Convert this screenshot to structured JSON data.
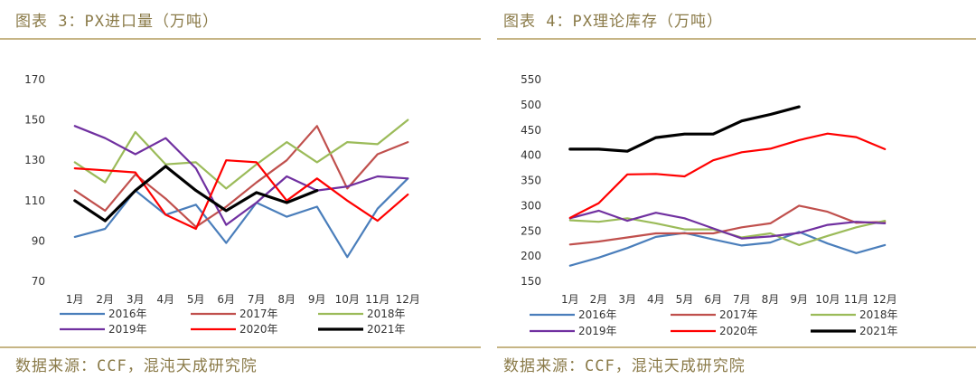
{
  "charts": [
    {
      "title": "图表 3：PX进口量（万吨）",
      "source": "数据来源：CCF，混沌天成研究院"
    },
    {
      "title": "图表 4：PX理论库存（万吨）",
      "source": "数据来源：CCF，混沌天成研究院"
    }
  ],
  "chart_data": [
    {
      "type": "line",
      "title": "图表 3：PX进口量（万吨）",
      "xlabel": "",
      "ylabel": "",
      "ylim": [
        70,
        170
      ],
      "yticks": [
        70,
        90,
        110,
        130,
        150,
        170
      ],
      "grid": false,
      "legend_position": "bottom",
      "categories": [
        "1月",
        "2月",
        "3月",
        "4月",
        "5月",
        "6月",
        "7月",
        "8月",
        "9月",
        "10月",
        "11月",
        "12月"
      ],
      "series": [
        {
          "name": "2016年",
          "color": "#4a7ebb",
          "width": 2.2,
          "values": [
            92,
            96,
            115,
            103,
            108,
            89,
            109,
            102,
            107,
            82,
            106,
            121
          ]
        },
        {
          "name": "2017年",
          "color": "#c0504d",
          "width": 2.2,
          "values": [
            115,
            105,
            123,
            111,
            97,
            107,
            119,
            130,
            147,
            116,
            133,
            139
          ]
        },
        {
          "name": "2018年",
          "color": "#9bbb59",
          "width": 2.2,
          "values": [
            129,
            119,
            144,
            128,
            129,
            116,
            128,
            139,
            129,
            139,
            138,
            150
          ]
        },
        {
          "name": "2019年",
          "color": "#7030a0",
          "width": 2.2,
          "values": [
            147,
            141,
            133,
            141,
            126,
            98,
            109,
            122,
            115,
            117,
            122,
            121
          ]
        },
        {
          "name": "2020年",
          "color": "#ff0000",
          "width": 2.2,
          "values": [
            126,
            125,
            124,
            103,
            96,
            130,
            129,
            110,
            121,
            110,
            100,
            113
          ]
        },
        {
          "name": "2021年",
          "color": "#000000",
          "width": 3.2,
          "values": [
            110,
            100,
            115,
            127,
            115,
            105,
            114,
            109,
            115,
            null,
            null,
            null
          ]
        }
      ]
    },
    {
      "type": "line",
      "title": "图表 4：PX理论库存（万吨）",
      "xlabel": "",
      "ylabel": "",
      "ylim": [
        150,
        550
      ],
      "yticks": [
        150,
        200,
        250,
        300,
        350,
        400,
        450,
        500,
        550
      ],
      "grid": false,
      "legend_position": "bottom",
      "categories": [
        "1月",
        "2月",
        "3月",
        "4月",
        "5月",
        "6月",
        "7月",
        "8月",
        "9月",
        "10月",
        "11月",
        "12月"
      ],
      "series": [
        {
          "name": "2016年",
          "color": "#4a7ebb",
          "width": 2.2,
          "values": [
            181,
            197,
            216,
            238,
            246,
            233,
            221,
            227,
            248,
            225,
            206,
            222
          ]
        },
        {
          "name": "2017年",
          "color": "#c0504d",
          "width": 2.2,
          "values": [
            223,
            229,
            237,
            245,
            245,
            245,
            257,
            265,
            300,
            288,
            266,
            268
          ]
        },
        {
          "name": "2018年",
          "color": "#9bbb59",
          "width": 2.2,
          "values": [
            271,
            268,
            275,
            265,
            253,
            253,
            237,
            245,
            222,
            240,
            257,
            270
          ]
        },
        {
          "name": "2019年",
          "color": "#7030a0",
          "width": 2.2,
          "values": [
            275,
            290,
            270,
            286,
            275,
            255,
            235,
            239,
            246,
            262,
            268,
            265
          ]
        },
        {
          "name": "2020年",
          "color": "#ff0000",
          "width": 2.2,
          "values": [
            276,
            305,
            362,
            363,
            358,
            390,
            406,
            413,
            430,
            443,
            436,
            412
          ]
        },
        {
          "name": "2021年",
          "color": "#000000",
          "width": 3.2,
          "values": [
            412,
            412,
            408,
            435,
            442,
            442,
            468,
            481,
            496,
            null,
            null,
            null
          ]
        }
      ]
    }
  ]
}
